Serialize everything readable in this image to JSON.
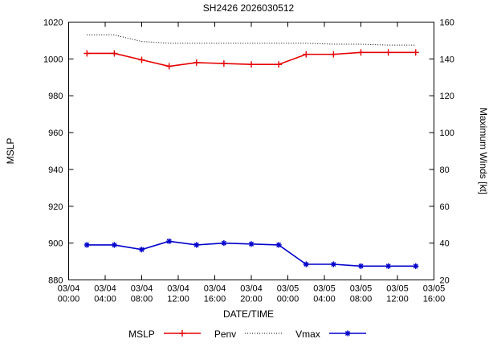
{
  "chart_data": {
    "type": "line",
    "title": "SH2426 2026030512",
    "xlabel": "DATE/TIME",
    "ylabel": "MSLP",
    "y2label": "Maximum Winds [kt]",
    "ylim": [
      880,
      1020
    ],
    "y2lim": [
      20,
      160
    ],
    "y_ticks": [
      880,
      900,
      920,
      940,
      960,
      980,
      1000,
      1020
    ],
    "y2_ticks": [
      20,
      40,
      60,
      80,
      100,
      120,
      140,
      160
    ],
    "xlim_hours": [
      0,
      40
    ],
    "x_tick_hours": [
      0,
      4,
      8,
      12,
      16,
      20,
      24,
      28,
      32,
      36,
      40
    ],
    "x_tick_labels": [
      [
        "03/04",
        "00:00"
      ],
      [
        "03/04",
        "04:00"
      ],
      [
        "03/04",
        "08:00"
      ],
      [
        "03/04",
        "12:00"
      ],
      [
        "03/04",
        "16:00"
      ],
      [
        "03/04",
        "20:00"
      ],
      [
        "03/05",
        "00:00"
      ],
      [
        "03/05",
        "04:00"
      ],
      [
        "03/05",
        "08:00"
      ],
      [
        "03/05",
        "12:00"
      ],
      [
        "03/05",
        "16:00"
      ]
    ],
    "x_hours": [
      2,
      5,
      8,
      11,
      14,
      17,
      20,
      23,
      26,
      29,
      32,
      35,
      38
    ],
    "x_point_labels": [
      "03/04 02:00",
      "03/04 05:00",
      "03/04 08:00",
      "03/04 11:00",
      "03/04 14:00",
      "03/04 17:00",
      "03/04 20:00",
      "03/04 23:00",
      "03/05 02:00",
      "03/05 05:00",
      "03/05 08:00",
      "03/05 11:00",
      "03/05 14:00"
    ],
    "series": [
      {
        "name": "MSLP",
        "axis": "y1",
        "color": "#e60000",
        "marker": "plus",
        "line": "solid",
        "values": [
          1003,
          1003,
          999.5,
          996,
          998,
          997.5,
          997,
          997,
          1002.5,
          1002.5,
          1003.5,
          1003.5,
          1003.5
        ]
      },
      {
        "name": "Penv",
        "axis": "y1",
        "color": "#000000",
        "marker": "none",
        "line": "dotted",
        "values": [
          1013,
          1013,
          1009.5,
          1008.5,
          1008.5,
          1008.5,
          1008.5,
          1008.5,
          1008.5,
          1008,
          1008,
          1007.5,
          1007.5
        ]
      },
      {
        "name": "Vmax",
        "axis": "y2",
        "color": "#0000cc",
        "marker": "asterisk",
        "line": "solid",
        "values": [
          39,
          39,
          36.5,
          41,
          39,
          40,
          39.5,
          39,
          28.5,
          28.5,
          27.5,
          27.5,
          27.5
        ]
      }
    ],
    "legend_position": "bottom",
    "grid": "off",
    "plot_border_color": "#000000"
  }
}
